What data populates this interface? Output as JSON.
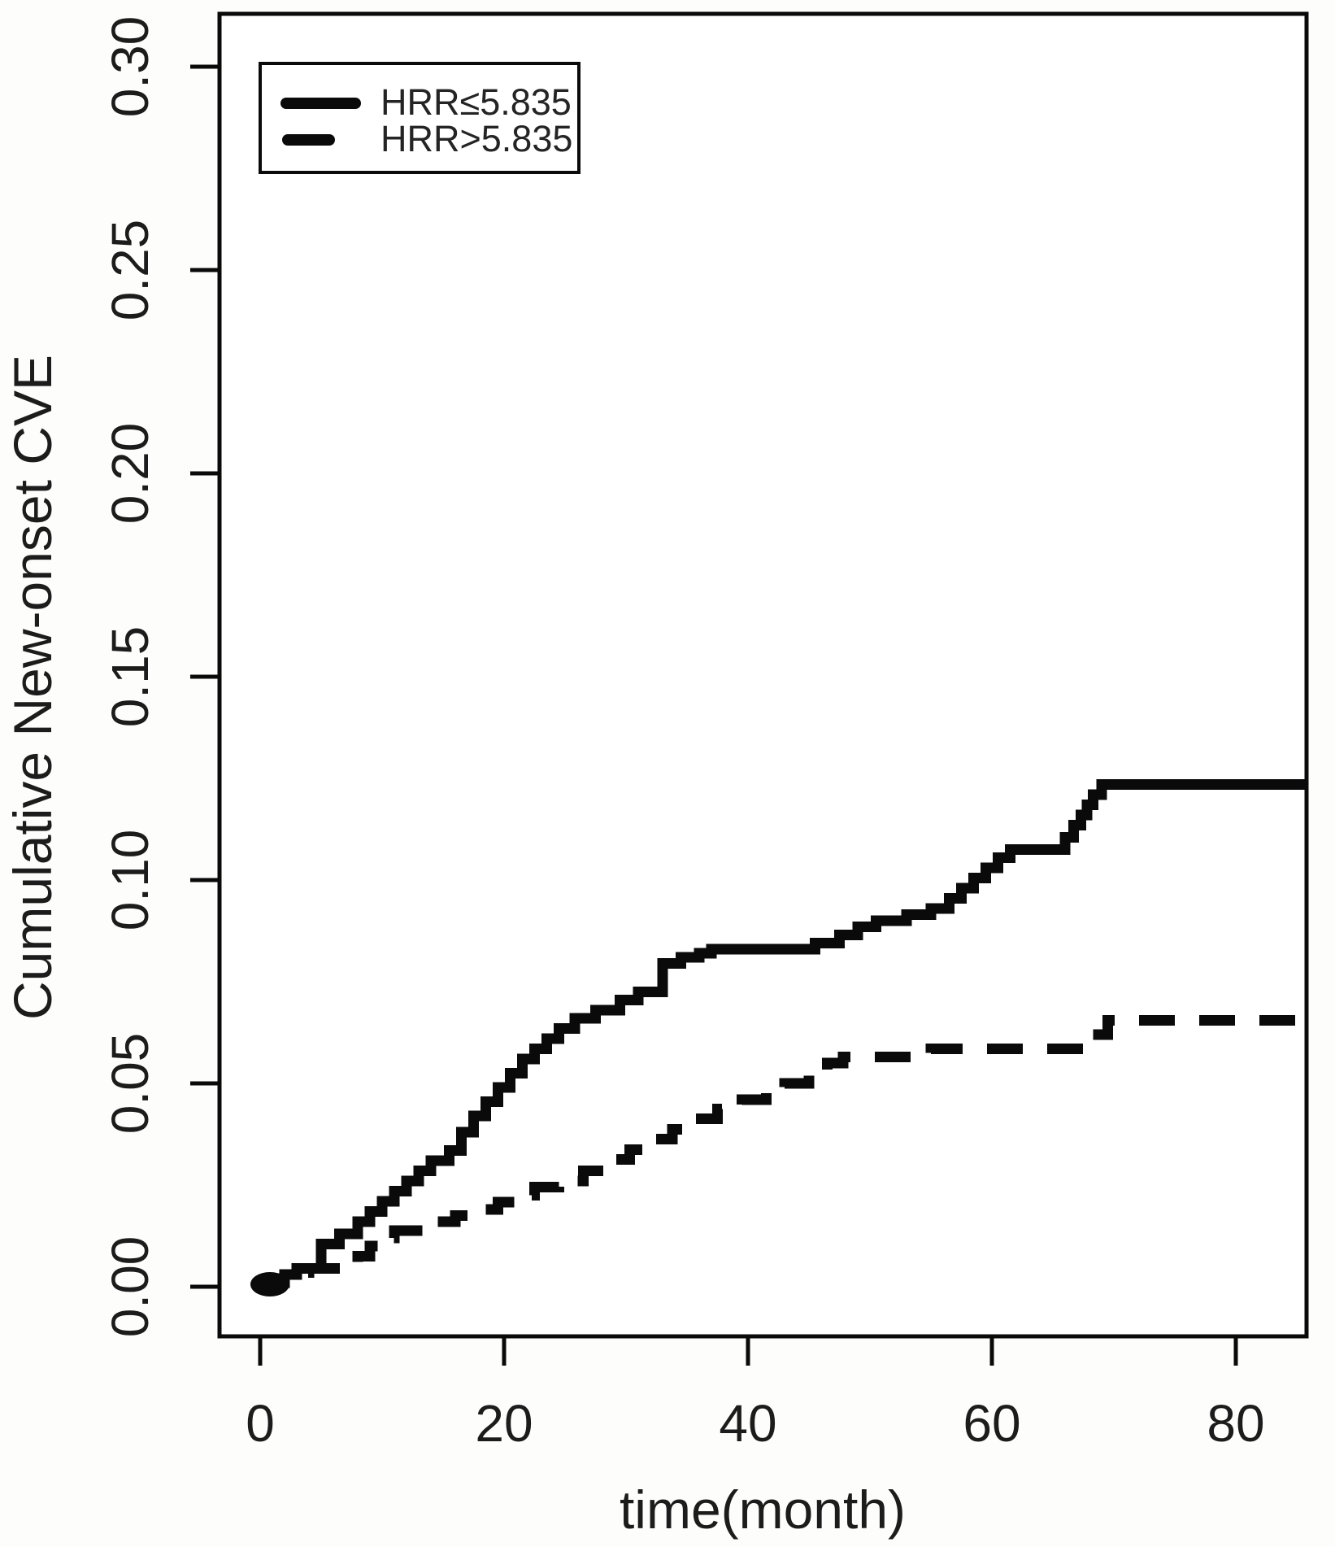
{
  "figure": {
    "background": "#fdfdfc",
    "plot_background": "#ffffff",
    "ink_color": "#0a0a0a",
    "text_color": "#1c1c1c"
  },
  "chart_data": {
    "type": "line",
    "subtype": "step-after",
    "title": "",
    "xlabel": "time(month)",
    "ylabel": "Cumulative New-onset CVE",
    "xlim": [
      -3.3,
      85.8
    ],
    "ylim": [
      -0.0122,
      0.313
    ],
    "xticks": [
      0,
      20,
      40,
      60,
      80
    ],
    "yticks": [
      0.0,
      0.05,
      0.1,
      0.15,
      0.2,
      0.25,
      0.3
    ],
    "ytick_labels": [
      "0.00",
      "0.05",
      "0.10",
      "0.15",
      "0.20",
      "0.25",
      "0.30"
    ],
    "grid": false,
    "frame": "box",
    "legend": {
      "position": "top-left",
      "entries": [
        {
          "label": "HRR≤5.835",
          "style": "solid"
        },
        {
          "label": "HRR>5.835",
          "style": "dashed"
        }
      ]
    },
    "series": [
      {
        "name": "HRR≤5.835",
        "style": "solid",
        "points": [
          [
            0,
            0.001
          ],
          [
            2,
            0.003
          ],
          [
            3,
            0.0045
          ],
          [
            5,
            0.0105
          ],
          [
            6.5,
            0.013
          ],
          [
            8,
            0.016
          ],
          [
            9,
            0.0185
          ],
          [
            10,
            0.021
          ],
          [
            11,
            0.0235
          ],
          [
            12,
            0.026
          ],
          [
            13,
            0.0285
          ],
          [
            14,
            0.031
          ],
          [
            15.5,
            0.0335
          ],
          [
            16.5,
            0.038
          ],
          [
            17.5,
            0.042
          ],
          [
            18.5,
            0.0455
          ],
          [
            19.5,
            0.049
          ],
          [
            20.5,
            0.0525
          ],
          [
            21.5,
            0.056
          ],
          [
            22.5,
            0.0585
          ],
          [
            23.5,
            0.061
          ],
          [
            24.5,
            0.0635
          ],
          [
            25.8,
            0.066
          ],
          [
            27.5,
            0.068
          ],
          [
            29.5,
            0.0705
          ],
          [
            31,
            0.0725
          ],
          [
            33,
            0.0795
          ],
          [
            34.5,
            0.081
          ],
          [
            36,
            0.082
          ],
          [
            37,
            0.083
          ],
          [
            45.5,
            0.0845
          ],
          [
            47.5,
            0.0865
          ],
          [
            49,
            0.0885
          ],
          [
            50.5,
            0.09
          ],
          [
            53,
            0.0915
          ],
          [
            55,
            0.093
          ],
          [
            56.5,
            0.0955
          ],
          [
            57.5,
            0.098
          ],
          [
            58.5,
            0.1005
          ],
          [
            59.5,
            0.103
          ],
          [
            60.5,
            0.1055
          ],
          [
            61.5,
            0.1075
          ],
          [
            66,
            0.1105
          ],
          [
            66.7,
            0.1135
          ],
          [
            67.3,
            0.116
          ],
          [
            67.8,
            0.1185
          ],
          [
            68.3,
            0.121
          ],
          [
            69,
            0.1235
          ],
          [
            85.8,
            0.1235
          ]
        ]
      },
      {
        "name": "HRR>5.835",
        "style": "dashed",
        "points": [
          [
            0,
            0.0005
          ],
          [
            1.5,
            0.002
          ],
          [
            3,
            0.0035
          ],
          [
            4,
            0.0045
          ],
          [
            8,
            0.0075
          ],
          [
            9,
            0.01
          ],
          [
            10,
            0.012
          ],
          [
            11,
            0.0138
          ],
          [
            14.5,
            0.016
          ],
          [
            16,
            0.0175
          ],
          [
            17.5,
            0.019
          ],
          [
            19.5,
            0.0208
          ],
          [
            21,
            0.0225
          ],
          [
            22.5,
            0.0245
          ],
          [
            24.5,
            0.026
          ],
          [
            26.5,
            0.0285
          ],
          [
            28.5,
            0.0313
          ],
          [
            30.3,
            0.0337
          ],
          [
            32,
            0.0363
          ],
          [
            33.8,
            0.0387
          ],
          [
            35.6,
            0.0413
          ],
          [
            37.5,
            0.0437
          ],
          [
            39.5,
            0.046
          ],
          [
            41.5,
            0.048
          ],
          [
            43,
            0.05
          ],
          [
            45,
            0.0533
          ],
          [
            46.5,
            0.055
          ],
          [
            47.8,
            0.0565
          ],
          [
            55,
            0.0585
          ],
          [
            68,
            0.062
          ],
          [
            69.5,
            0.0655
          ],
          [
            85.8,
            0.0655
          ]
        ]
      }
    ]
  }
}
